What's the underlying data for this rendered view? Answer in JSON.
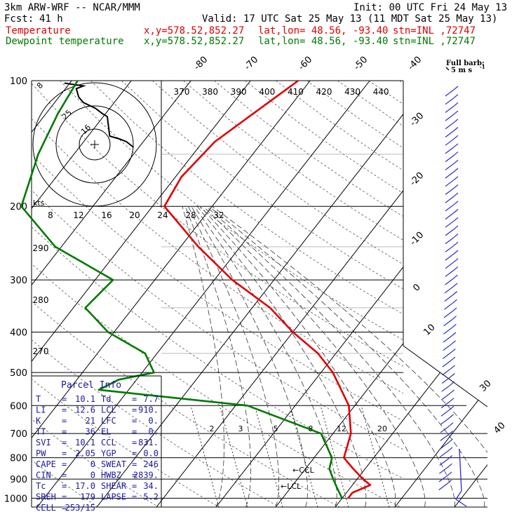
{
  "header": {
    "model": "3km ARW-WRF -- NCAR/MMM",
    "init": "Init: 00 UTC Fri 24 May 13",
    "fcst_label": "Fcst:",
    "fcst_value": "41 h",
    "valid": "Valid: 17 UTC Sat 25 May 13 (11 MDT Sat 25 May 13)",
    "temp_label": "Temperature",
    "dew_label": "Dewpoint temperature",
    "xy": "x,y=578.52,852.27",
    "latlon": "lat,lon= 48.56, -93.40",
    "stn": "stn=INL ,72747",
    "full_barb": "Full barb:",
    "full_barb_value": "5 m s",
    "full_barb_exp": "-1"
  },
  "parcel_info": {
    "title": "Parcel Info",
    "rows": [
      {
        "l1": "T",
        "v1": "10.1",
        "l2": "Td",
        "v2": "7.7"
      },
      {
        "l1": "LI",
        "v1": "12.6",
        "l2": "LCL",
        "v2": "910."
      },
      {
        "l1": "K",
        "v1": "21",
        "l2": "LFC",
        "v2": "0."
      },
      {
        "l1": "TT",
        "v1": "36",
        "l2": "EL",
        "v2": "0."
      },
      {
        "l1": "SVI",
        "v1": "10.1",
        "l2": "CCL",
        "v2": "831."
      },
      {
        "l1": "PW",
        "v1": "2.05",
        "l2": "YGP",
        "v2": "0.0"
      },
      {
        "l1": "CAPE",
        "v1": "0",
        "l2": "SWEAT",
        "v2": "246"
      },
      {
        "l1": "CIN",
        "v1": "0",
        "l2": "HWBZ",
        "v2": "2839."
      },
      {
        "l1": "Tc",
        "v1": "17.0",
        "l2": "SHEAR",
        "v2": "34."
      },
      {
        "l1": "SREH",
        "v1": "179",
        "l2": "LAPSE",
        "v2": "5.2"
      },
      {
        "l1": "CELL",
        "v1": "253/15",
        "l2": "",
        "v2": ""
      }
    ]
  },
  "inset": {
    "kts_label": "kts",
    "ring_labels": [
      "8",
      "25",
      "16"
    ],
    "hodograph_u": [
      -13,
      -5,
      -8,
      -7,
      -5,
      0,
      3,
      5,
      6,
      10,
      13,
      16
    ],
    "hodograph_v": [
      22,
      21,
      20,
      17,
      15,
      13,
      11,
      10,
      3,
      2,
      1,
      -1
    ]
  },
  "colors": {
    "temperature": "#e00000",
    "dewpoint": "#007a00",
    "grid": "#000000"
  },
  "chart_data": {
    "type": "line",
    "title": "",
    "xlabel": "",
    "ylabel": "",
    "pressure_levels": [
      100,
      200,
      300,
      400,
      500,
      600,
      700,
      800,
      900,
      1000
    ],
    "isotherm_labels": [
      -80,
      -70,
      -60,
      -50,
      -40,
      -30,
      -20,
      -10,
      0,
      10,
      20,
      30,
      40
    ],
    "theta_labels": [
      370,
      380,
      390,
      400,
      410,
      420,
      430,
      440
    ],
    "theta_e_labels": [
      290,
      280,
      270
    ],
    "mixing_ratio_labels": [
      2,
      3,
      5,
      8,
      12,
      20
    ],
    "wind_scale_labels": [
      8,
      12,
      16,
      20,
      24,
      28,
      32
    ],
    "annotations": [
      "LCL",
      "CCL"
    ],
    "series": [
      {
        "name": "Temperature",
        "points": [
          [
            100,
            -52
          ],
          [
            140,
            -58
          ],
          [
            170,
            -59
          ],
          [
            200,
            -58
          ],
          [
            250,
            -47
          ],
          [
            300,
            -37
          ],
          [
            350,
            -27
          ],
          [
            400,
            -20
          ],
          [
            450,
            -13
          ],
          [
            500,
            -8
          ],
          [
            600,
            -1
          ],
          [
            700,
            3
          ],
          [
            800,
            5
          ],
          [
            850,
            8
          ],
          [
            900,
            11
          ],
          [
            930,
            13
          ],
          [
            970,
            11
          ],
          [
            1000,
            11
          ]
        ]
      },
      {
        "name": "Dewpoint temperature",
        "points": [
          [
            100,
            -89
          ],
          [
            120,
            -88
          ],
          [
            150,
            -86
          ],
          [
            200,
            -82
          ],
          [
            250,
            -71
          ],
          [
            300,
            -57
          ],
          [
            350,
            -58
          ],
          [
            400,
            -51
          ],
          [
            450,
            -42
          ],
          [
            500,
            -38
          ],
          [
            520,
            -43
          ],
          [
            550,
            -45
          ],
          [
            600,
            -18
          ],
          [
            700,
            -2
          ],
          [
            800,
            3
          ],
          [
            850,
            4
          ],
          [
            900,
            6
          ],
          [
            950,
            8
          ],
          [
            1000,
            10
          ]
        ]
      }
    ]
  }
}
